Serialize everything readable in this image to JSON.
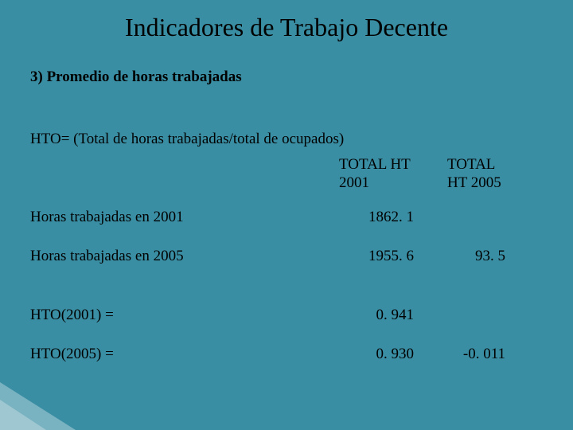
{
  "background_color": "#3a8ea3",
  "text_color": "#000000",
  "font_family": "Times New Roman",
  "title": "Indicadores de Trabajo Decente",
  "subtitle": "3) Promedio de horas trabajadas",
  "formula": "HTO= (Total de horas trabajadas/total de ocupados)",
  "columns": {
    "c1_line1": "TOTAL HT",
    "c1_line2": "2001",
    "c2_line1": "TOTAL",
    "c2_line2": "HT 2005"
  },
  "rows": [
    {
      "label": "Horas trabajadas en 2001",
      "v1": "1862. 1",
      "v2": ""
    },
    {
      "label": "Horas trabajadas en 2005",
      "v1": "1955. 6",
      "v2": "93. 5"
    },
    {
      "label": "HTO(2001)  =",
      "v1": "0. 941",
      "v2": ""
    },
    {
      "label": "HTO(2005)  =",
      "v1": "0. 930",
      "v2": "-0. 011"
    }
  ],
  "title_fontsize": 32,
  "body_fontsize": 19
}
